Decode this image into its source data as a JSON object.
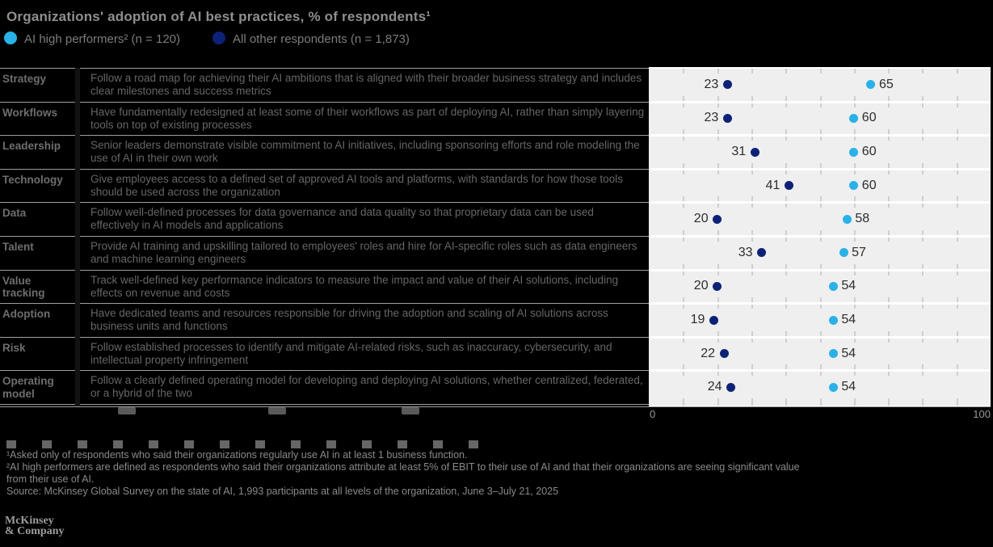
{
  "header": {
    "title": "Organizations' adoption of AI best practices, % of respondents¹",
    "legend": [
      {
        "label": "AI high performers² (n = 120)",
        "color": "#29b1e8"
      },
      {
        "label": "All other respondents (n = 1,873)",
        "color": "#0d2277"
      }
    ]
  },
  "chart_data": {
    "type": "scatter",
    "title": "Organizations' adoption of AI best practices, % of respondents",
    "xlim": [
      0,
      100
    ],
    "grid": "vertical ticks every 10",
    "legend_position": "top-left",
    "categories": [
      "Strategy",
      "Workflows",
      "Leadership",
      "Technology",
      "Data",
      "Talent",
      "Value tracking",
      "Adoption",
      "Risk",
      "Operating model"
    ],
    "series": [
      {
        "name": "AI high performers",
        "color": "#29b1e8",
        "values": [
          65,
          60,
          60,
          60,
          58,
          57,
          54,
          54,
          54,
          54
        ]
      },
      {
        "name": "All other respondents",
        "color": "#0d2277",
        "values": [
          23,
          23,
          31,
          41,
          20,
          33,
          20,
          19,
          22,
          24
        ]
      }
    ],
    "x_axis_tick_labels": [
      "0",
      "100"
    ]
  },
  "rows": [
    {
      "label": "Strategy",
      "desc": "Follow a road map for achieving their AI ambitions that is aligned with their broader business strategy and includes clear milestones and success metrics",
      "other": 23,
      "high": 65
    },
    {
      "label": "Workflows",
      "desc": "Have fundamentally redesigned at least some of their workflows as part of deploying AI, rather than simply layering tools on top of existing processes",
      "other": 23,
      "high": 60
    },
    {
      "label": "Leadership",
      "desc": "Senior leaders demonstrate visible commitment to AI initiatives, including sponsoring efforts and role modeling the use of AI in their own work",
      "other": 31,
      "high": 60
    },
    {
      "label": "Technology",
      "desc": "Give employees access to a defined set of approved AI tools and platforms, with standards for how those tools should be used across the organization",
      "other": 41,
      "high": 60
    },
    {
      "label": "Data",
      "desc": "Follow well-defined processes for data governance and data quality so that proprietary data can be used effectively in AI models and applications",
      "other": 20,
      "high": 58
    },
    {
      "label": "Talent",
      "desc": "Provide AI training and upskilling tailored to employees' roles and hire for AI-specific roles such as data engineers and machine learning engineers",
      "other": 33,
      "high": 57
    },
    {
      "label": "Value tracking",
      "desc": "Track well-defined key performance indicators to measure the impact and value of their AI solutions, including effects on revenue and costs",
      "other": 20,
      "high": 54
    },
    {
      "label": "Adoption",
      "desc": "Have dedicated teams and resources responsible for driving the adoption and scaling of AI solutions across business units and functions",
      "other": 19,
      "high": 54
    },
    {
      "label": "Risk",
      "desc": "Follow established processes to identify and mitigate AI-related risks, such as inaccuracy, cybersecurity, and intellectual property infringement",
      "other": 22,
      "high": 54
    },
    {
      "label": "Operating model",
      "desc": "Follow a clearly defined operating model for developing and deploying AI solutions, whether centralized, federated, or a hybrid of the two",
      "other": 24,
      "high": 54
    }
  ],
  "axis": {
    "min": "0",
    "max": "100"
  },
  "footnotes": {
    "f1": "¹Asked only of respondents who said their organizations regularly use AI in at least 1 business function.",
    "f2": "²AI high performers are defined as respondents who said their organizations attribute at least 5% of EBIT to their use of AI and that their organizations are seeing significant value from their use of AI.",
    "source": "Source: McKinsey Global Survey on the state of AI, 1,993 participants at all levels of the organization, June 3–July 21, 2025"
  },
  "logo": {
    "line1": "McKinsey",
    "line2": "& Company"
  },
  "colors": {
    "background": "#000000",
    "panel": "#efefef",
    "high_performer_dot": "#29b1e8",
    "other_dot": "#0d2277",
    "value_text": "#2d2d2d",
    "separator": "#9f9f9f"
  }
}
